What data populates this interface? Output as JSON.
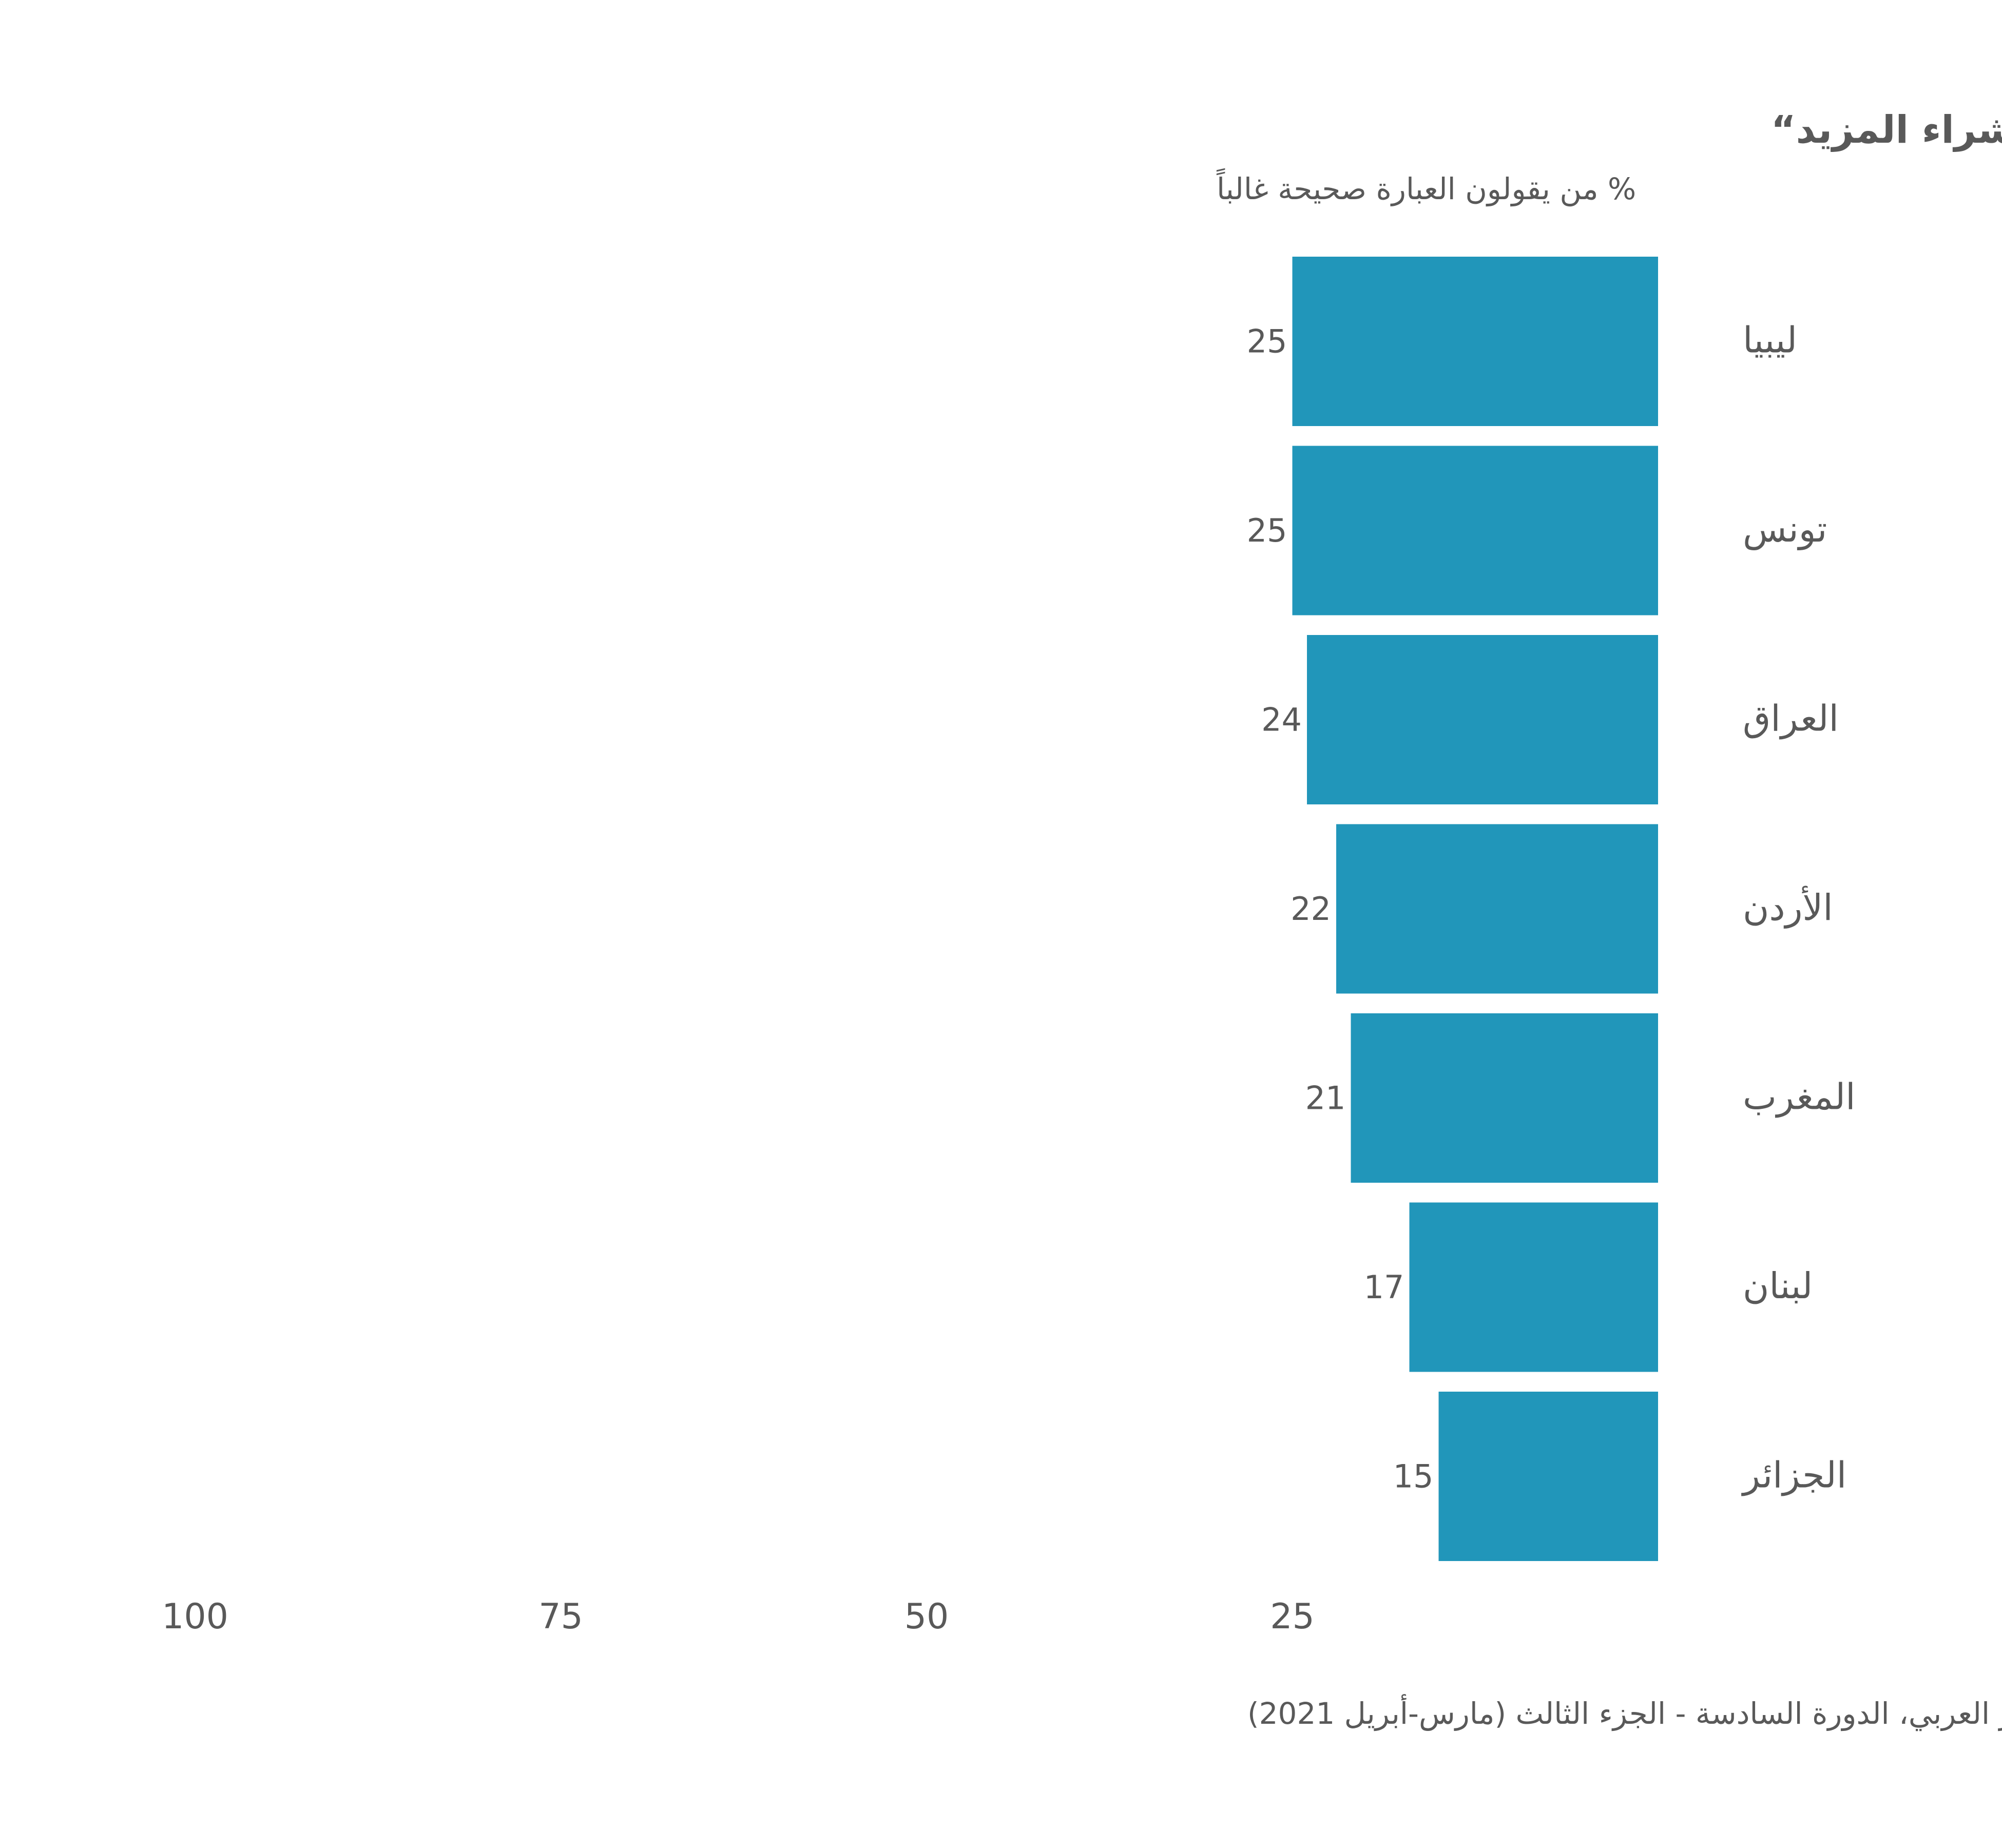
{
  "chart_data": {
    "type": "bar",
    "orientation": "horizontal",
    "title": "”نفذ الغذاء الذي اشتريناه ولم يكن لدينا من المال ما يكفي لشراء المزيد“",
    "subtitle": "% من يقولون العبارة صحيحة غالباً",
    "source": "الباروميتر العربي، الدورة السادسة - الجزء الثالث (مارس-أبريل 2021)",
    "categories": [
      "ليبيا",
      "تونس",
      "العراق",
      "الأردن",
      "المغرب",
      "لبنان",
      "الجزائر"
    ],
    "values": [
      25,
      25,
      24,
      22,
      21,
      17,
      15
    ],
    "value_labels": [
      "25",
      "25",
      "24",
      "22",
      "21",
      "17",
      "15"
    ],
    "xlim": [
      0,
      100
    ],
    "x_reversed": true,
    "xticks": [
      100,
      75,
      50,
      25
    ],
    "xtick_labels": [
      "100",
      "75",
      "50",
      "25"
    ],
    "bar_color": "#2196BA",
    "text_color": "#595959",
    "grid": false,
    "legend": "none"
  }
}
